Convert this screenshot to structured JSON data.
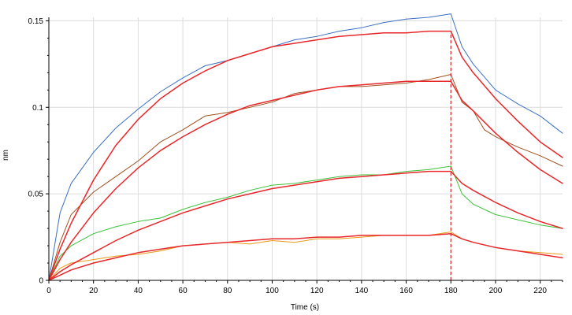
{
  "chart_data": {
    "type": "line",
    "title": "",
    "xlabel": "Time (s)",
    "ylabel": "nm",
    "xlim": [
      0,
      230
    ],
    "ylim": [
      0,
      0.152
    ],
    "x_ticks": [
      0,
      20,
      40,
      60,
      80,
      100,
      120,
      140,
      160,
      180,
      200,
      220
    ],
    "y_ticks": [
      0,
      0.05,
      0.1,
      0.15
    ],
    "y_tick_labels": [
      "0",
      "0.05",
      "0.1",
      "0.15"
    ],
    "grid": true,
    "legend": "none",
    "annotations": [
      {
        "type": "vertical-dashed-line",
        "x": 180,
        "color": "#e8272a"
      }
    ],
    "series": [
      {
        "color": "#3a6fc4",
        "kind": "measured",
        "x": [
          0,
          5,
          10,
          20,
          30,
          40,
          50,
          60,
          70,
          80,
          90,
          100,
          110,
          120,
          130,
          140,
          150,
          160,
          170,
          180,
          185,
          190,
          200,
          210,
          220,
          230
        ],
        "y": [
          0,
          0.039,
          0.056,
          0.074,
          0.088,
          0.099,
          0.109,
          0.117,
          0.124,
          0.127,
          0.131,
          0.135,
          0.139,
          0.141,
          0.144,
          0.146,
          0.149,
          0.151,
          0.152,
          0.154,
          0.135,
          0.125,
          0.11,
          0.102,
          0.095,
          0.085
        ]
      },
      {
        "color": "#a0501e",
        "kind": "measured",
        "x": [
          0,
          5,
          10,
          20,
          30,
          40,
          50,
          60,
          70,
          80,
          90,
          100,
          110,
          120,
          130,
          140,
          150,
          160,
          170,
          180,
          185,
          190,
          195,
          200,
          210,
          220,
          230
        ],
        "y": [
          0,
          0.022,
          0.038,
          0.051,
          0.06,
          0.069,
          0.08,
          0.087,
          0.095,
          0.097,
          0.1,
          0.103,
          0.108,
          0.11,
          0.112,
          0.112,
          0.113,
          0.114,
          0.116,
          0.119,
          0.103,
          0.098,
          0.087,
          0.083,
          0.077,
          0.072,
          0.066
        ]
      },
      {
        "color": "#3cc23a",
        "kind": "measured",
        "x": [
          0,
          5,
          10,
          20,
          30,
          40,
          50,
          60,
          70,
          80,
          90,
          100,
          110,
          120,
          130,
          140,
          150,
          160,
          170,
          180,
          185,
          190,
          200,
          210,
          220,
          230
        ],
        "y": [
          0,
          0.014,
          0.02,
          0.027,
          0.031,
          0.034,
          0.036,
          0.041,
          0.045,
          0.048,
          0.052,
          0.055,
          0.056,
          0.058,
          0.06,
          0.061,
          0.061,
          0.063,
          0.064,
          0.066,
          0.05,
          0.044,
          0.038,
          0.035,
          0.032,
          0.03
        ]
      },
      {
        "color": "#e89a1a",
        "kind": "measured",
        "x": [
          0,
          5,
          10,
          20,
          30,
          40,
          50,
          60,
          70,
          80,
          90,
          100,
          110,
          120,
          130,
          140,
          150,
          160,
          170,
          180,
          185,
          190,
          200,
          210,
          220,
          230
        ],
        "y": [
          0,
          0.007,
          0.01,
          0.012,
          0.014,
          0.015,
          0.017,
          0.02,
          0.021,
          0.022,
          0.021,
          0.023,
          0.022,
          0.024,
          0.024,
          0.025,
          0.026,
          0.026,
          0.026,
          0.028,
          0.024,
          0.022,
          0.019,
          0.017,
          0.016,
          0.015
        ]
      },
      {
        "color": "#e8272a",
        "kind": "fit",
        "x": [
          0,
          5,
          10,
          20,
          30,
          40,
          50,
          60,
          70,
          80,
          90,
          100,
          110,
          120,
          130,
          140,
          150,
          160,
          170,
          180,
          185,
          190,
          200,
          210,
          220,
          230
        ],
        "y": [
          0,
          0.018,
          0.033,
          0.058,
          0.078,
          0.093,
          0.105,
          0.114,
          0.121,
          0.127,
          0.131,
          0.135,
          0.137,
          0.139,
          0.141,
          0.142,
          0.143,
          0.143,
          0.144,
          0.144,
          0.129,
          0.12,
          0.105,
          0.092,
          0.08,
          0.071
        ]
      },
      {
        "color": "#e8272a",
        "kind": "fit",
        "x": [
          0,
          5,
          10,
          20,
          30,
          40,
          50,
          60,
          70,
          80,
          90,
          100,
          110,
          120,
          130,
          140,
          150,
          160,
          170,
          180,
          185,
          190,
          200,
          210,
          220,
          230
        ],
        "y": [
          0,
          0.012,
          0.022,
          0.039,
          0.053,
          0.065,
          0.075,
          0.083,
          0.09,
          0.096,
          0.101,
          0.104,
          0.107,
          0.11,
          0.112,
          0.113,
          0.114,
          0.115,
          0.115,
          0.115,
          0.104,
          0.098,
          0.085,
          0.074,
          0.064,
          0.056
        ]
      },
      {
        "color": "#e8272a",
        "kind": "fit",
        "x": [
          0,
          5,
          10,
          20,
          30,
          40,
          50,
          60,
          70,
          80,
          90,
          100,
          110,
          120,
          130,
          140,
          150,
          160,
          170,
          180,
          185,
          190,
          200,
          210,
          220,
          230
        ],
        "y": [
          0,
          0.005,
          0.009,
          0.016,
          0.023,
          0.029,
          0.034,
          0.039,
          0.043,
          0.047,
          0.05,
          0.053,
          0.055,
          0.057,
          0.059,
          0.06,
          0.061,
          0.062,
          0.063,
          0.063,
          0.056,
          0.052,
          0.045,
          0.039,
          0.034,
          0.03
        ]
      },
      {
        "color": "#e8272a",
        "kind": "fit",
        "x": [
          0,
          5,
          10,
          20,
          30,
          40,
          50,
          60,
          70,
          80,
          90,
          100,
          110,
          120,
          130,
          140,
          150,
          160,
          170,
          180,
          185,
          190,
          200,
          210,
          220,
          230
        ],
        "y": [
          0,
          0.003,
          0.006,
          0.01,
          0.013,
          0.016,
          0.018,
          0.02,
          0.021,
          0.022,
          0.023,
          0.024,
          0.024,
          0.025,
          0.025,
          0.026,
          0.026,
          0.026,
          0.026,
          0.027,
          0.024,
          0.022,
          0.019,
          0.017,
          0.015,
          0.013
        ]
      }
    ]
  }
}
